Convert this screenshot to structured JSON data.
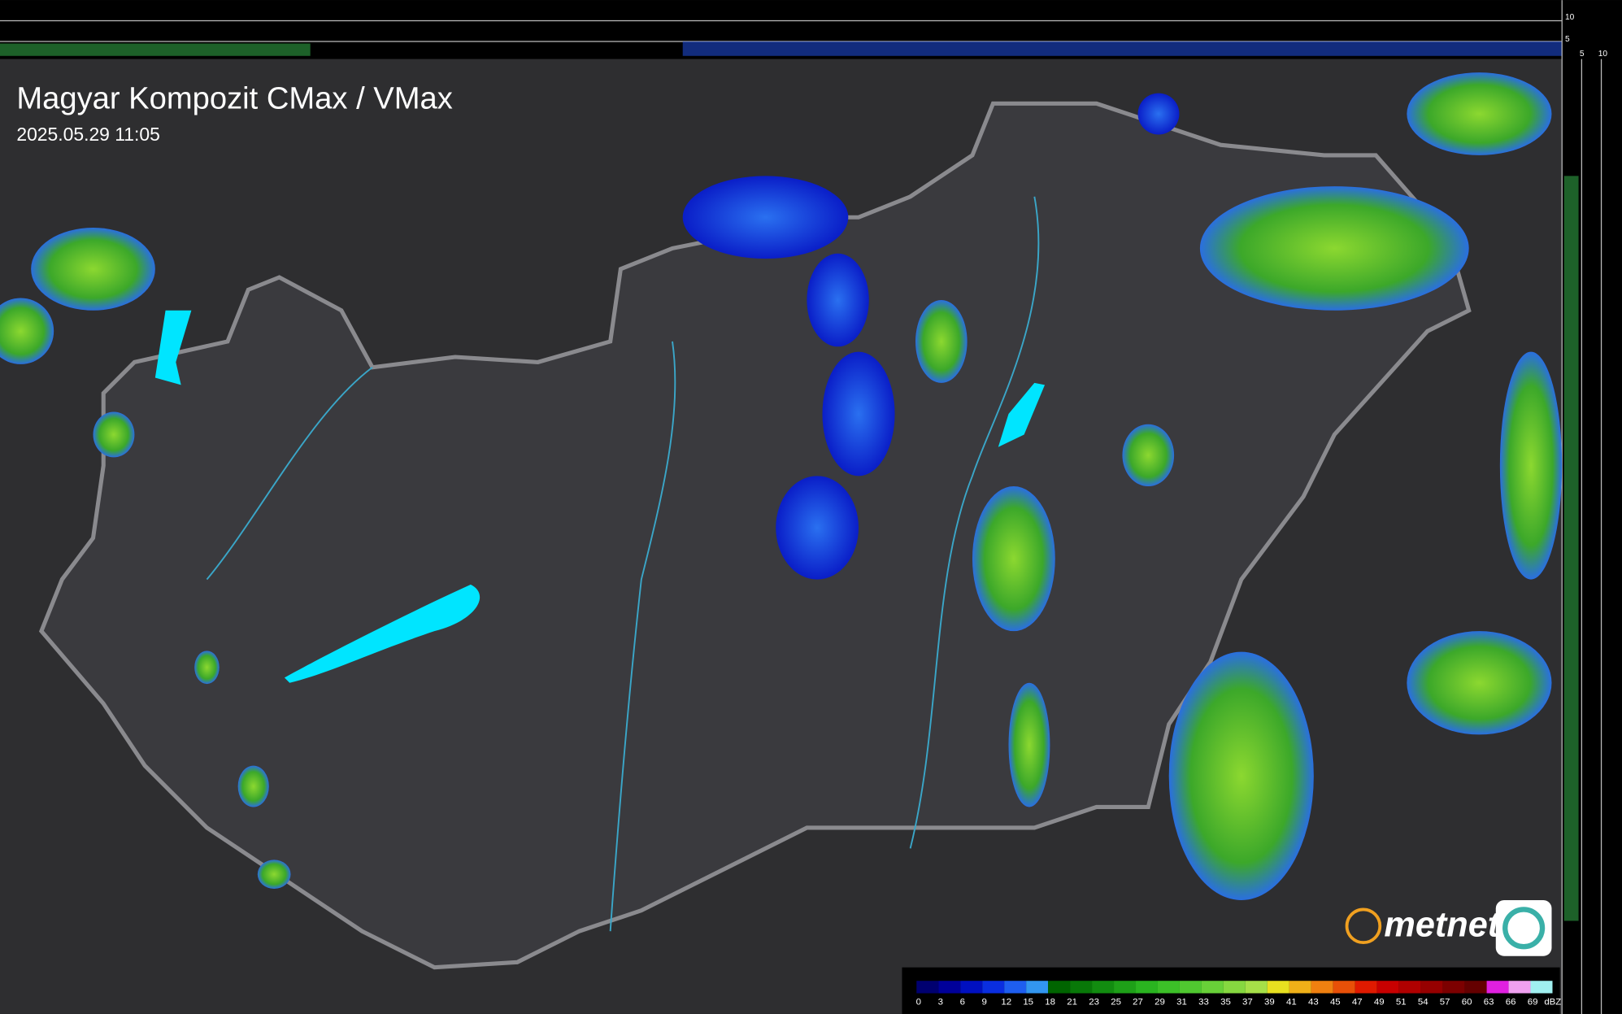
{
  "header": {
    "title": "Magyar Kompozit CMax / VMax",
    "timestamp": "2025.05.29 11:05"
  },
  "side_scale": {
    "top_labels": [
      10,
      5
    ],
    "bottom_labels": [
      5,
      10
    ]
  },
  "logo": {
    "text": "metnet"
  },
  "legend": {
    "unit": "dBZ",
    "ticks": [
      0,
      3,
      6,
      9,
      12,
      15,
      18,
      21,
      23,
      25,
      27,
      29,
      31,
      33,
      35,
      37,
      39,
      41,
      43,
      45,
      47,
      49,
      51,
      54,
      57,
      60,
      63,
      66,
      69
    ],
    "colors": [
      "#000070",
      "#00009a",
      "#0010c0",
      "#0a2ee0",
      "#1e5ef0",
      "#3296f0",
      "#006400",
      "#087808",
      "#128c10",
      "#1ea018",
      "#2ab420",
      "#3cc028",
      "#50c830",
      "#68d038",
      "#86d840",
      "#a6e048",
      "#e8e020",
      "#f0b018",
      "#f08010",
      "#e85008",
      "#e01a00",
      "#c80000",
      "#b00000",
      "#960000",
      "#7c0000",
      "#640000",
      "#e020e0",
      "#f0a0f0",
      "#a0f0f0"
    ]
  }
}
